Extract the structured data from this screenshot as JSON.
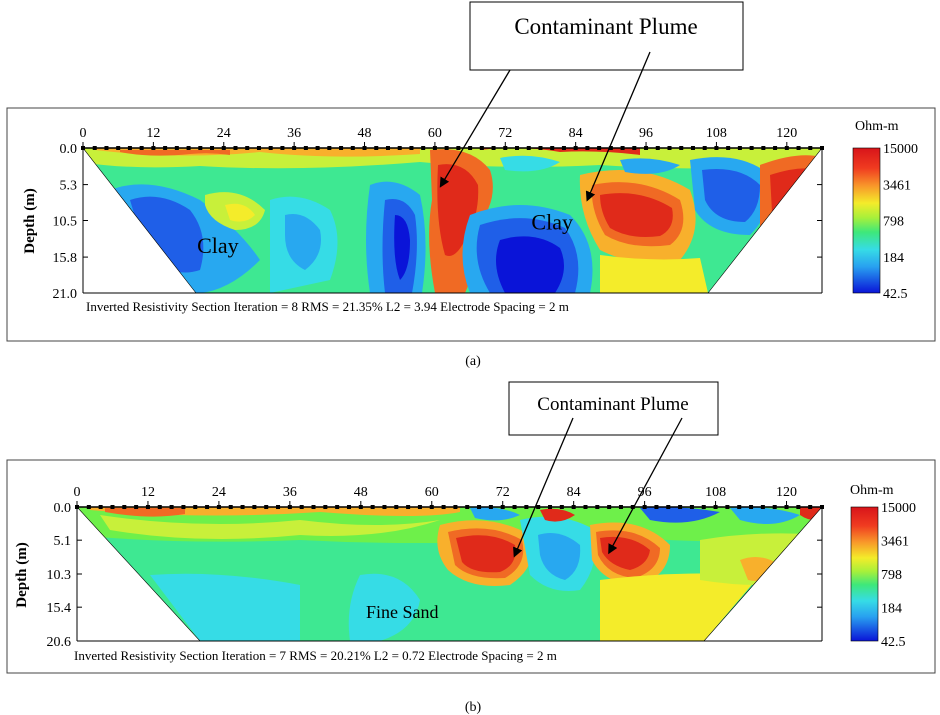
{
  "chart_data": [
    {
      "type": "heatmap",
      "panel_label": "(a)",
      "callout": "Contaminant Plume",
      "xticks": [
        "0",
        "12",
        "24",
        "36",
        "48",
        "60",
        "72",
        "84",
        "96",
        "108",
        "120"
      ],
      "xlim": [
        0,
        126
      ],
      "depth_ticks": [
        "0.0",
        "5.3",
        "10.5",
        "15.8",
        "21.0"
      ],
      "depth_values": [
        0.0,
        5.3,
        10.5,
        15.8,
        21.0
      ],
      "ylim": [
        0.0,
        21.0
      ],
      "ylabel": "Depth (m)",
      "colorbar_title": "Ohm-m",
      "colorbar_ticks": [
        "15000",
        "3461",
        "798",
        "184",
        "42.5"
      ],
      "footer": "Inverted Resistivity Section  Iteration = 8  RMS = 21.35%  L2 = 3.94  Electrode Spacing = 2 m",
      "annotations": [
        {
          "text": "Clay",
          "x": 23,
          "depth": 15.2
        },
        {
          "text": "Clay",
          "x": 80,
          "depth": 11.8
        }
      ],
      "arrows": [
        {
          "x": 61,
          "depth": 5.5
        },
        {
          "x": 86,
          "depth": 7.5
        }
      ]
    },
    {
      "type": "heatmap",
      "panel_label": "(b)",
      "callout": "Contaminant Plume",
      "xticks": [
        "0",
        "12",
        "24",
        "36",
        "48",
        "60",
        "72",
        "84",
        "96",
        "108",
        "120"
      ],
      "xlim": [
        0,
        126
      ],
      "depth_ticks": [
        "0.0",
        "5.1",
        "10.3",
        "15.4",
        "20.6"
      ],
      "depth_values": [
        0.0,
        5.1,
        10.3,
        15.4,
        20.6
      ],
      "ylim": [
        0.0,
        20.6
      ],
      "ylabel": "Depth (m)",
      "colorbar_title": "Ohm-m",
      "colorbar_ticks": [
        "15000",
        "3461",
        "798",
        "184",
        "42.5"
      ],
      "footer": "Inverted Resistivity Section  Iteration = 7  RMS = 20.21%  L2 = 0.72  Electrode Spacing = 2 m",
      "annotations": [
        {
          "text": "Fine Sand",
          "x": 55,
          "depth": 17.1
        }
      ],
      "arrows": [
        {
          "x": 74,
          "depth": 7.5
        },
        {
          "x": 90,
          "depth": 7.0
        }
      ]
    }
  ],
  "colors": {
    "scale": [
      "#0a14d8",
      "#1f5fe8",
      "#28a8f0",
      "#36dce6",
      "#3ee892",
      "#6ef04a",
      "#c8f03a",
      "#f4ec2a",
      "#f8b02c",
      "#f06a24",
      "#e02a1a",
      "#c8141a"
    ]
  }
}
